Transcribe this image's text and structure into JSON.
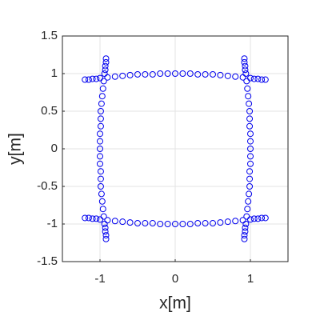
{
  "chart_data": {
    "type": "scatter",
    "xlabel": "x[m]",
    "ylabel": "y[m]",
    "xlim": [
      -1.5,
      1.5
    ],
    "ylim": [
      -1.5,
      1.5
    ],
    "xticks": [
      -1,
      0,
      1
    ],
    "yticks": [
      -1.5,
      -1,
      -0.5,
      0,
      0.5,
      1,
      1.5
    ],
    "grid": true,
    "color": "#0000ee",
    "x": [
      -0.9,
      -0.8,
      -0.7,
      -0.6,
      -0.5,
      -0.4,
      -0.3,
      -0.2,
      -0.1,
      0,
      0.1,
      0.2,
      0.3,
      0.4,
      0.5,
      0.6,
      0.7,
      0.8,
      0.9,
      -0.9,
      -0.8,
      -0.7,
      -0.6,
      -0.5,
      -0.4,
      -0.3,
      -0.2,
      -0.1,
      0,
      0.1,
      0.2,
      0.3,
      0.4,
      0.5,
      0.6,
      0.7,
      0.8,
      0.9,
      -0.95,
      -0.96,
      -0.97,
      -0.98,
      -0.99,
      -0.99,
      -0.99,
      -1,
      -1,
      -1,
      -1,
      -1,
      -0.99,
      -0.99,
      -0.99,
      -0.98,
      -0.97,
      -0.96,
      -0.95,
      0.95,
      0.96,
      0.97,
      0.98,
      0.99,
      0.99,
      0.99,
      1,
      1,
      1,
      1,
      1,
      0.99,
      0.99,
      0.99,
      0.98,
      0.97,
      0.96,
      0.95,
      1,
      1.05,
      1.1,
      1.15,
      1.2,
      0.94,
      0.93,
      0.93,
      0.92,
      0.92,
      -1,
      -1.05,
      -1.1,
      -1.15,
      -1.2,
      -0.94,
      -0.93,
      -0.93,
      -0.92,
      -0.92,
      -1,
      -1.05,
      -1.1,
      -1.15,
      -1.2,
      -0.94,
      -0.93,
      -0.93,
      -0.92,
      -0.92,
      1,
      1.05,
      1.1,
      1.15,
      1.2,
      0.94,
      0.93,
      0.93,
      0.92,
      0.92
    ],
    "y": [
      0.95,
      0.96,
      0.97,
      0.98,
      0.99,
      0.99,
      0.99,
      1,
      1,
      1,
      1,
      1,
      0.99,
      0.99,
      0.99,
      0.98,
      0.97,
      0.96,
      0.95,
      -0.95,
      -0.96,
      -0.97,
      -0.98,
      -0.99,
      -0.99,
      -0.99,
      -1,
      -1,
      -1,
      -1,
      -1,
      -0.99,
      -0.99,
      -0.99,
      -0.98,
      -0.97,
      -0.96,
      -0.95,
      -0.9,
      -0.8,
      -0.7,
      -0.6,
      -0.5,
      -0.4,
      -0.3,
      -0.2,
      -0.1,
      0,
      0.1,
      0.2,
      0.3,
      0.4,
      0.5,
      0.6,
      0.7,
      0.8,
      0.9,
      -0.9,
      -0.8,
      -0.7,
      -0.6,
      -0.5,
      -0.4,
      -0.3,
      -0.2,
      -0.1,
      0,
      0.1,
      0.2,
      0.3,
      0.4,
      0.5,
      0.6,
      0.7,
      0.8,
      0.9,
      0.94,
      0.93,
      0.93,
      0.92,
      0.92,
      1,
      1.05,
      1.1,
      1.15,
      1.2,
      0.94,
      0.93,
      0.93,
      0.92,
      0.92,
      1,
      1.05,
      1.1,
      1.15,
      1.2,
      -0.94,
      -0.93,
      -0.93,
      -0.92,
      -0.92,
      -1,
      -1.05,
      -1.1,
      -1.15,
      -1.2,
      -0.94,
      -0.93,
      -0.93,
      -0.92,
      -0.92,
      -1,
      -1.05,
      -1.1,
      -1.15,
      -1.2
    ]
  }
}
